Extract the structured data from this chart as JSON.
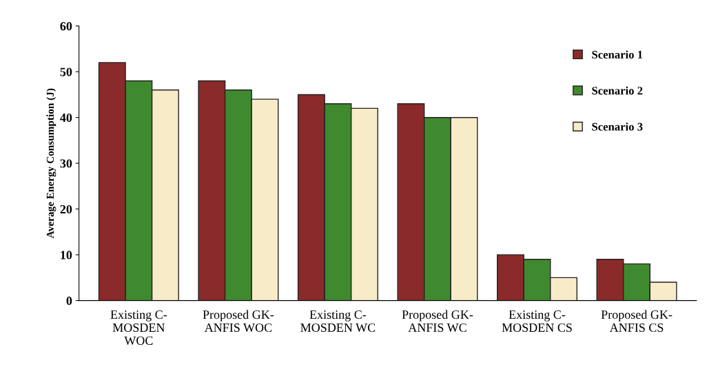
{
  "chart_data": {
    "type": "bar",
    "ylabel": "Average Energy Consumption (J)",
    "categories": [
      "Existing C-\nMOSDEN\nWOC",
      "Proposed GK-\nANFIS WOC",
      "Existing C-\nMOSDEN WC",
      "Proposed GK-\nANFIS WC",
      "Existing C-\nMOSDEN CS",
      "Proposed GK-\nANFIS CS"
    ],
    "series": [
      {
        "name": "Scenario 1",
        "color": "#8b2a2a",
        "values": [
          52,
          48,
          45,
          43,
          10,
          9
        ]
      },
      {
        "name": "Scenario 2",
        "color": "#3f8a2e",
        "values": [
          48,
          46,
          43,
          40,
          9,
          8
        ]
      },
      {
        "name": "Scenario 3",
        "color": "#f8ebc8",
        "values": [
          46,
          44,
          42,
          40,
          5,
          4
        ]
      }
    ],
    "ylim": [
      0,
      60
    ],
    "yticks": [
      0,
      10,
      20,
      30,
      40,
      50,
      60
    ],
    "grid": false,
    "legend": "top right"
  }
}
